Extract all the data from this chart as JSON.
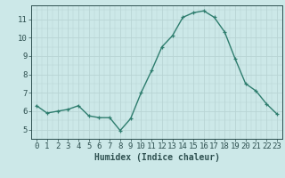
{
  "x": [
    0,
    1,
    2,
    3,
    4,
    5,
    6,
    7,
    8,
    9,
    10,
    11,
    12,
    13,
    14,
    15,
    16,
    17,
    18,
    19,
    20,
    21,
    22,
    23
  ],
  "y": [
    6.3,
    5.9,
    6.0,
    6.1,
    6.3,
    5.75,
    5.65,
    5.65,
    4.95,
    5.6,
    7.0,
    8.2,
    9.5,
    10.1,
    11.1,
    11.35,
    11.45,
    11.1,
    10.3,
    8.85,
    7.5,
    7.1,
    6.4,
    5.85
  ],
  "xlabel": "Humidex (Indice chaleur)",
  "ylim": [
    4.5,
    11.75
  ],
  "xlim": [
    -0.5,
    23.5
  ],
  "yticks": [
    5,
    6,
    7,
    8,
    9,
    10,
    11
  ],
  "xticks": [
    0,
    1,
    2,
    3,
    4,
    5,
    6,
    7,
    8,
    9,
    10,
    11,
    12,
    13,
    14,
    15,
    16,
    17,
    18,
    19,
    20,
    21,
    22,
    23
  ],
  "line_color": "#2e7d6e",
  "marker": "+",
  "bg_color": "#cce8e8",
  "grid_color_major": "#b8d4d4",
  "axis_color": "#2e5050",
  "xlabel_fontsize": 7,
  "tick_fontsize": 6.5
}
